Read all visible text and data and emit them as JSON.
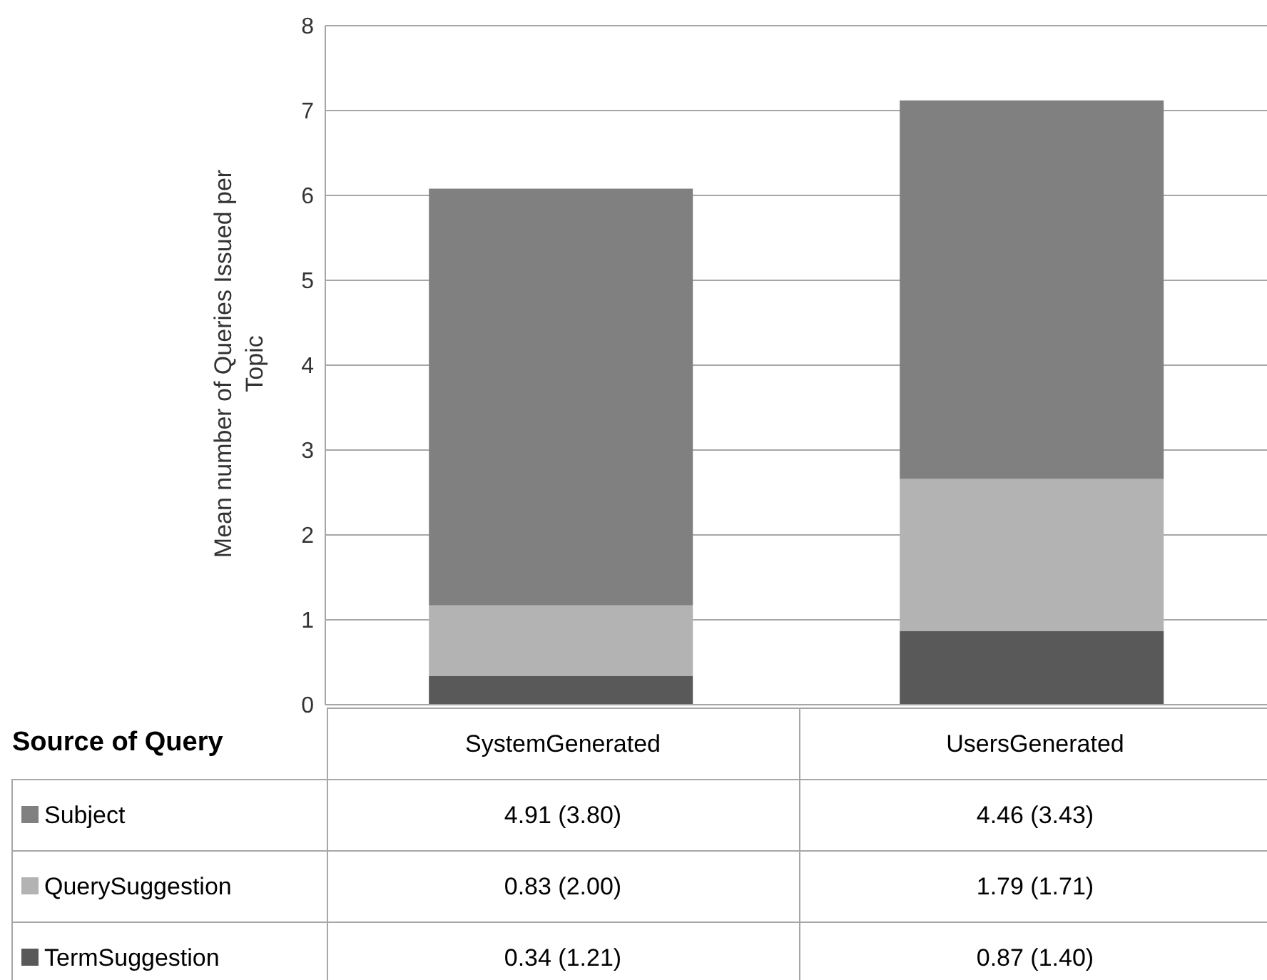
{
  "chart_data": {
    "type": "bar",
    "stacked": true,
    "xlabel": "Source of Query",
    "ylabel": "Mean number of Queries Issued per Topic",
    "categories": [
      "SystemGenerated",
      "UsersGenerated"
    ],
    "series": [
      {
        "name": "TermSuggestion",
        "color": "#595959",
        "values": [
          0.34,
          0.87
        ],
        "value_labels": [
          "0.34 (1.21)",
          "0.87 (1.40)"
        ]
      },
      {
        "name": "QuerySuggestion",
        "color": "#b3b3b3",
        "values": [
          0.83,
          1.79
        ],
        "value_labels": [
          "0.83 (2.00)",
          "1.79 (1.71)"
        ]
      },
      {
        "name": "Subject",
        "color": "#808080",
        "values": [
          4.91,
          4.46
        ],
        "value_labels": [
          "4.91 (3.80)",
          "4.46 (3.43)"
        ]
      }
    ],
    "ylim": [
      0,
      8
    ],
    "yticks": [
      0,
      1,
      2,
      3,
      4,
      5,
      6,
      7,
      8
    ],
    "grid": "y",
    "legend": "bottom"
  }
}
